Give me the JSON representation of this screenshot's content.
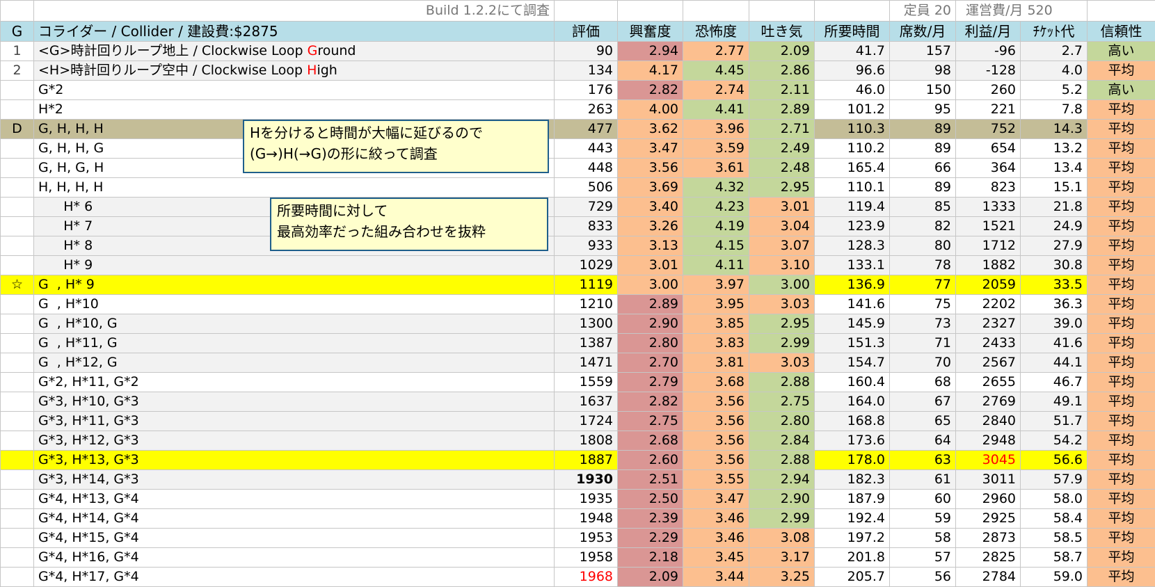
{
  "colors": {
    "header": "#b7dee8",
    "red_fill": "#da9694",
    "orange_fill": "#fcbf8f",
    "green_fill": "#c4d79b",
    "tan_fill": "#c4bd97",
    "yellow_fill": "#ffff00",
    "gray_fill": "#f2f2f2",
    "red_text": "#ff0000",
    "note_border": "#1f5f8b",
    "note_fill": "#ffffcc"
  },
  "top": {
    "build_note": "Build 1.2.2にて調査",
    "capacity": "定員 20",
    "upkeep": "運営費/月 520"
  },
  "header": {
    "col_a": "G",
    "title": "コライダー / Collider / 建設費:$2875",
    "columns": [
      "評価",
      "興奮度",
      "恐怖度",
      "吐き気",
      "所要時間",
      "席数/月",
      "利益/月",
      "ﾁｹｯﾄ代",
      "信頼性"
    ]
  },
  "rows": [
    {
      "a": "1",
      "parts": [
        "<G>時計回りループ地上 / Clockwise Loop ",
        "G",
        "round"
      ],
      "style": "gray",
      "v": [
        "90",
        "2.94",
        "2.77",
        "2.09",
        "41.7",
        "157",
        "-96",
        "2.7",
        "高い"
      ],
      "c": [
        "r",
        "o",
        "g",
        "g"
      ]
    },
    {
      "a": "2",
      "parts": [
        "<H>時計回りループ空中 / Clockwise Loop ",
        "H",
        "igh"
      ],
      "style": "gray",
      "v": [
        "134",
        "4.17",
        "4.45",
        "2.86",
        "96.6",
        "98",
        "-128",
        "4.0",
        "平均"
      ],
      "c": [
        "o",
        "g",
        "g",
        "o"
      ]
    },
    {
      "a": "",
      "label": "G*2",
      "style": "",
      "v": [
        "176",
        "2.82",
        "2.74",
        "2.11",
        "46.0",
        "150",
        "260",
        "5.2",
        "高い"
      ],
      "c": [
        "r",
        "o",
        "g",
        "g"
      ]
    },
    {
      "a": "",
      "label": "H*2",
      "style": "",
      "v": [
        "263",
        "4.00",
        "4.41",
        "2.89",
        "101.2",
        "95",
        "221",
        "7.8",
        "平均"
      ],
      "c": [
        "o",
        "g",
        "g",
        "o"
      ]
    },
    {
      "a": "D",
      "label": "G, H, H, H",
      "style": "tan",
      "v": [
        "477",
        "3.62",
        "3.96",
        "2.71",
        "110.3",
        "89",
        "752",
        "14.3",
        "平均"
      ],
      "c": [
        "o",
        "o",
        "g",
        "o"
      ]
    },
    {
      "a": "",
      "label": "G, H, H, G",
      "style": "",
      "v": [
        "443",
        "3.47",
        "3.59",
        "2.49",
        "110.2",
        "89",
        "654",
        "13.2",
        "平均"
      ],
      "c": [
        "o",
        "o",
        "g",
        "o"
      ]
    },
    {
      "a": "",
      "label": "G, H, G, H",
      "style": "",
      "v": [
        "448",
        "3.56",
        "3.61",
        "2.48",
        "165.4",
        "66",
        "364",
        "13.4",
        "平均"
      ],
      "c": [
        "o",
        "o",
        "g",
        "o"
      ]
    },
    {
      "a": "",
      "label": "H, H, H, H",
      "style": "",
      "v": [
        "506",
        "3.69",
        "4.32",
        "2.95",
        "110.1",
        "89",
        "823",
        "15.1",
        "平均"
      ],
      "c": [
        "o",
        "g",
        "g",
        "o"
      ]
    },
    {
      "a": "",
      "label": "      H* 6",
      "style": "gray",
      "v": [
        "729",
        "3.40",
        "4.23",
        "3.01",
        "119.4",
        "85",
        "1333",
        "21.8",
        "平均"
      ],
      "c": [
        "o",
        "g",
        "o",
        "o"
      ]
    },
    {
      "a": "",
      "label": "      H* 7",
      "style": "gray",
      "v": [
        "833",
        "3.26",
        "4.19",
        "3.04",
        "123.9",
        "82",
        "1521",
        "24.9",
        "平均"
      ],
      "c": [
        "o",
        "g",
        "o",
        "o"
      ]
    },
    {
      "a": "",
      "label": "      H* 8",
      "style": "gray",
      "v": [
        "933",
        "3.13",
        "4.15",
        "3.07",
        "128.3",
        "80",
        "1712",
        "27.9",
        "平均"
      ],
      "c": [
        "o",
        "g",
        "o",
        "o"
      ]
    },
    {
      "a": "",
      "label": "      H* 9",
      "style": "gray",
      "v": [
        "1029",
        "3.01",
        "4.11",
        "3.10",
        "133.1",
        "78",
        "1882",
        "30.8",
        "平均"
      ],
      "c": [
        "o",
        "g",
        "o",
        "o"
      ]
    },
    {
      "a": "☆",
      "label": "G  , H* 9",
      "style": "yel",
      "v": [
        "1119",
        "3.00",
        "3.97",
        "3.00",
        "136.9",
        "77",
        "2059",
        "33.5",
        "平均"
      ],
      "c": [
        "o",
        "o",
        "g",
        "o"
      ]
    },
    {
      "a": "",
      "label": "G  , H*10",
      "style": "",
      "v": [
        "1210",
        "2.89",
        "3.95",
        "3.03",
        "141.6",
        "75",
        "2202",
        "36.3",
        "平均"
      ],
      "c": [
        "r",
        "o",
        "o",
        "o"
      ]
    },
    {
      "a": "",
      "label": "G  , H*10, G",
      "style": "gray",
      "v": [
        "1300",
        "2.90",
        "3.85",
        "2.95",
        "145.9",
        "73",
        "2327",
        "39.0",
        "平均"
      ],
      "c": [
        "r",
        "o",
        "g",
        "o"
      ]
    },
    {
      "a": "",
      "label": "G  , H*11, G",
      "style": "gray",
      "v": [
        "1387",
        "2.80",
        "3.83",
        "2.99",
        "151.3",
        "71",
        "2433",
        "41.6",
        "平均"
      ],
      "c": [
        "r",
        "o",
        "g",
        "o"
      ]
    },
    {
      "a": "",
      "label": "G  , H*12, G",
      "style": "gray",
      "v": [
        "1471",
        "2.70",
        "3.81",
        "3.03",
        "154.7",
        "70",
        "2567",
        "44.1",
        "平均"
      ],
      "c": [
        "r",
        "o",
        "o",
        "o"
      ]
    },
    {
      "a": "",
      "label": "G*2, H*11, G*2",
      "style": "",
      "v": [
        "1559",
        "2.79",
        "3.68",
        "2.88",
        "160.4",
        "68",
        "2655",
        "46.7",
        "平均"
      ],
      "c": [
        "r",
        "o",
        "g",
        "o"
      ]
    },
    {
      "a": "",
      "label": "G*3, H*10, G*3",
      "style": "gray",
      "v": [
        "1637",
        "2.82",
        "3.56",
        "2.75",
        "164.0",
        "67",
        "2769",
        "49.1",
        "平均"
      ],
      "c": [
        "r",
        "o",
        "g",
        "o"
      ]
    },
    {
      "a": "",
      "label": "G*3, H*11, G*3",
      "style": "gray",
      "v": [
        "1724",
        "2.75",
        "3.56",
        "2.80",
        "168.8",
        "65",
        "2840",
        "51.7",
        "平均"
      ],
      "c": [
        "r",
        "o",
        "g",
        "o"
      ]
    },
    {
      "a": "",
      "label": "G*3, H*12, G*3",
      "style": "gray",
      "v": [
        "1808",
        "2.68",
        "3.56",
        "2.84",
        "173.6",
        "64",
        "2948",
        "54.2",
        "平均"
      ],
      "c": [
        "r",
        "o",
        "g",
        "o"
      ]
    },
    {
      "a": "",
      "label": "G*3, H*13, G*3",
      "style": "yel",
      "v": [
        "1887",
        "2.60",
        "3.56",
        "2.88",
        "178.0",
        "63",
        "3045",
        "56.6",
        "平均"
      ],
      "c": [
        "r",
        "o",
        "g",
        "o"
      ],
      "red": [
        6
      ]
    },
    {
      "a": "",
      "label": "G*3, H*14, G*3",
      "style": "gray",
      "v": [
        "1930",
        "2.51",
        "3.55",
        "2.94",
        "182.3",
        "61",
        "3011",
        "57.9",
        "平均"
      ],
      "c": [
        "r",
        "o",
        "g",
        "o"
      ],
      "bold": [
        0
      ]
    },
    {
      "a": "",
      "label": "G*4, H*13, G*4",
      "style": "",
      "v": [
        "1935",
        "2.50",
        "3.47",
        "2.90",
        "187.9",
        "60",
        "2960",
        "58.0",
        "平均"
      ],
      "c": [
        "r",
        "o",
        "g",
        "o"
      ]
    },
    {
      "a": "",
      "label": "G*4, H*14, G*4",
      "style": "",
      "v": [
        "1948",
        "2.39",
        "3.46",
        "2.99",
        "192.4",
        "59",
        "2925",
        "58.4",
        "平均"
      ],
      "c": [
        "r",
        "o",
        "g",
        "o"
      ]
    },
    {
      "a": "",
      "label": "G*4, H*15, G*4",
      "style": "",
      "v": [
        "1953",
        "2.29",
        "3.46",
        "3.08",
        "197.2",
        "58",
        "2873",
        "58.5",
        "平均"
      ],
      "c": [
        "r",
        "o",
        "o",
        "o"
      ]
    },
    {
      "a": "",
      "label": "G*4, H*16, G*4",
      "style": "",
      "v": [
        "1958",
        "2.18",
        "3.45",
        "3.17",
        "201.8",
        "57",
        "2825",
        "58.7",
        "平均"
      ],
      "c": [
        "r",
        "o",
        "o",
        "o"
      ]
    },
    {
      "a": "",
      "label": "G*4, H*17, G*4",
      "style": "",
      "v": [
        "1968",
        "2.09",
        "3.44",
        "3.25",
        "205.7",
        "56",
        "2784",
        "59.0",
        "平均"
      ],
      "c": [
        "r",
        "o",
        "o",
        "o"
      ],
      "red": [
        0
      ]
    }
  ],
  "notes": {
    "note1": "Hを分けると時間が大幅に延びるので\n(G→)H(→G)の形に絞って調査",
    "note2": "所要時間に対して\n最高効率だった組み合わせを抜粋"
  }
}
